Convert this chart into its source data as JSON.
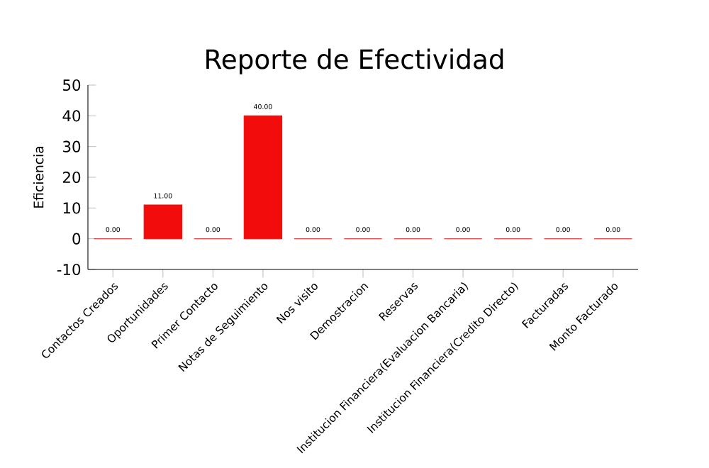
{
  "chart_data": {
    "type": "bar",
    "title": "Reporte de Efectividad",
    "ylabel": "Eficiencia",
    "categories": [
      "Contactos Creados",
      "Oportunidades",
      "Primer Contacto",
      "Notas de Seguimiento",
      "Nos visito",
      "Demostracion",
      "Reservas",
      "Institucion Financiera(Evaluacion Bancaria)",
      "Institucion Financiera(Credito Directo)",
      "Facturadas",
      "Monto Facturado"
    ],
    "values": [
      0,
      11,
      0,
      40,
      0,
      0,
      0,
      0,
      0,
      0,
      0
    ],
    "value_labels": [
      "0.00",
      "11.00",
      "0.00",
      "40.00",
      "0.00",
      "0.00",
      "0.00",
      "0.00",
      "0.00",
      "0.00",
      "0.00"
    ],
    "color": "#f20c0c",
    "ylim": [
      -10,
      50
    ],
    "yticks": [
      -10,
      0,
      10,
      20,
      30,
      40,
      50
    ],
    "grid": false
  }
}
